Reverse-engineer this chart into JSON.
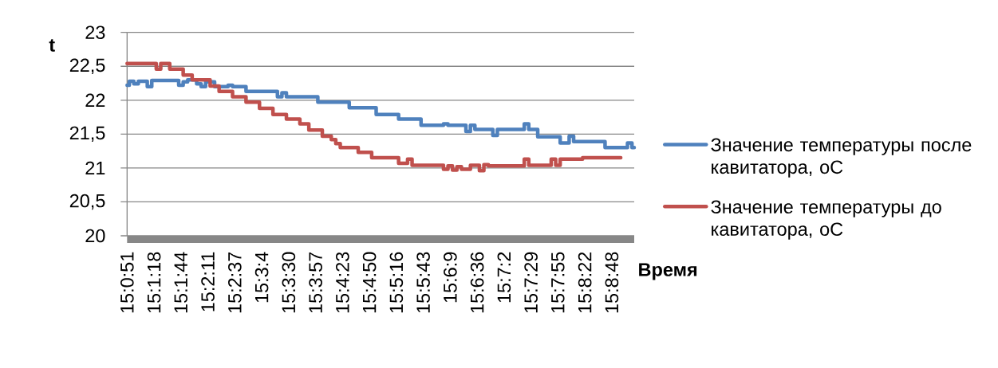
{
  "chart_data": {
    "type": "step",
    "xlabel": "Время",
    "ylabel": "t",
    "categories": [
      "15:0:51",
      null,
      null,
      null,
      null,
      null,
      "15:1:18",
      null,
      null,
      null,
      null,
      null,
      "15:1:44",
      null,
      null,
      null,
      null,
      null,
      "15:2:11",
      null,
      null,
      null,
      null,
      null,
      "15:2:37",
      null,
      null,
      null,
      null,
      null,
      "15:3:4",
      null,
      null,
      null,
      null,
      null,
      "15:3:30",
      null,
      null,
      null,
      null,
      null,
      "15:3:57",
      null,
      null,
      null,
      null,
      null,
      "15:4:23",
      null,
      null,
      null,
      null,
      null,
      "15:4:50",
      null,
      null,
      null,
      null,
      null,
      "15:5:16",
      null,
      null,
      null,
      null,
      null,
      "15:5:43",
      null,
      null,
      null,
      null,
      null,
      "15:6:9",
      null,
      null,
      null,
      null,
      null,
      "15:6:36",
      null,
      null,
      null,
      null,
      null,
      "15:7:2",
      null,
      null,
      null,
      null,
      null,
      "15:7:29",
      null,
      null,
      null,
      null,
      null,
      "15:7:55",
      null,
      null,
      null,
      null,
      null,
      "15:8:22",
      null,
      null,
      null,
      null,
      null,
      "15:8:48",
      null,
      null,
      null,
      null,
      null
    ],
    "ylim": [
      20,
      23
    ],
    "yticks": [
      20,
      {
        "value": 20.5,
        "label": "20,5"
      },
      21,
      {
        "value": 21.5,
        "label": "21,5"
      },
      22,
      {
        "value": 22.5,
        "label": "22,5"
      },
      23
    ],
    "grid": "y",
    "legend": "right",
    "series": [
      {
        "name": "Значение температуры после кавитатора, оС",
        "color": "#4f81bd",
        "values": [
          22.22,
          22.28,
          22.24,
          22.28,
          22.28,
          22.2,
          22.29,
          22.29,
          22.29,
          22.29,
          22.29,
          22.29,
          22.22,
          22.27,
          22.3,
          22.3,
          22.24,
          22.2,
          22.27,
          22.27,
          22.2,
          22.2,
          22.2,
          22.22,
          22.2,
          22.2,
          22.2,
          22.13,
          22.13,
          22.13,
          22.13,
          22.13,
          22.13,
          22.13,
          22.05,
          22.11,
          22.05,
          22.05,
          22.05,
          22.05,
          22.05,
          22.05,
          22.05,
          21.97,
          21.97,
          21.97,
          21.97,
          21.97,
          21.97,
          21.97,
          21.89,
          21.89,
          21.89,
          21.89,
          21.89,
          21.89,
          21.79,
          21.79,
          21.79,
          21.79,
          21.79,
          21.72,
          21.72,
          21.72,
          21.72,
          21.72,
          21.63,
          21.63,
          21.63,
          21.63,
          21.63,
          21.65,
          21.63,
          21.63,
          21.63,
          21.63,
          21.54,
          21.63,
          21.57,
          21.57,
          21.57,
          21.57,
          21.48,
          21.57,
          21.57,
          21.57,
          21.57,
          21.57,
          21.57,
          21.65,
          21.57,
          21.57,
          21.46,
          21.46,
          21.46,
          21.46,
          21.46,
          21.37,
          21.37,
          21.47,
          21.39,
          21.39,
          21.39,
          21.39,
          21.39,
          21.39,
          21.39,
          21.3,
          21.3,
          21.3,
          21.3,
          21.3,
          21.37,
          21.3
        ]
      },
      {
        "name": "Значение температуры до кавитатора, оС",
        "color": "#c0504d",
        "values": [
          22.54,
          22.54,
          22.54,
          22.54,
          22.54,
          22.54,
          22.54,
          22.46,
          22.54,
          22.54,
          22.46,
          22.46,
          22.46,
          22.37,
          22.37,
          22.3,
          22.3,
          22.3,
          22.3,
          22.21,
          22.21,
          22.13,
          22.13,
          22.13,
          22.05,
          22.05,
          22.05,
          21.97,
          21.97,
          21.97,
          21.88,
          21.88,
          21.88,
          21.79,
          21.79,
          21.79,
          21.72,
          21.72,
          21.72,
          21.65,
          21.65,
          21.56,
          21.56,
          21.56,
          21.47,
          21.47,
          21.42,
          21.36,
          21.3,
          21.3,
          21.3,
          21.3,
          21.23,
          21.23,
          21.23,
          21.15,
          21.15,
          21.15,
          21.15,
          21.15,
          21.15,
          21.07,
          21.07,
          21.13,
          21.04,
          21.04,
          21.04,
          21.04,
          21.04,
          21.04,
          21.04,
          20.98,
          21.03,
          20.97,
          21.02,
          20.98,
          20.98,
          21.04,
          21.04,
          20.96,
          21.05,
          21.03,
          21.03,
          21.03,
          21.03,
          21.03,
          21.03,
          21.03,
          21.03,
          21.13,
          21.04,
          21.04,
          21.04,
          21.04,
          21.04,
          21.13,
          21.04,
          21.13,
          21.13,
          21.13,
          21.13,
          21.13,
          21.15,
          21.15,
          21.15,
          21.15,
          21.15,
          21.15,
          21.15,
          21.15,
          21.15,
          null,
          null,
          null
        ]
      }
    ]
  }
}
